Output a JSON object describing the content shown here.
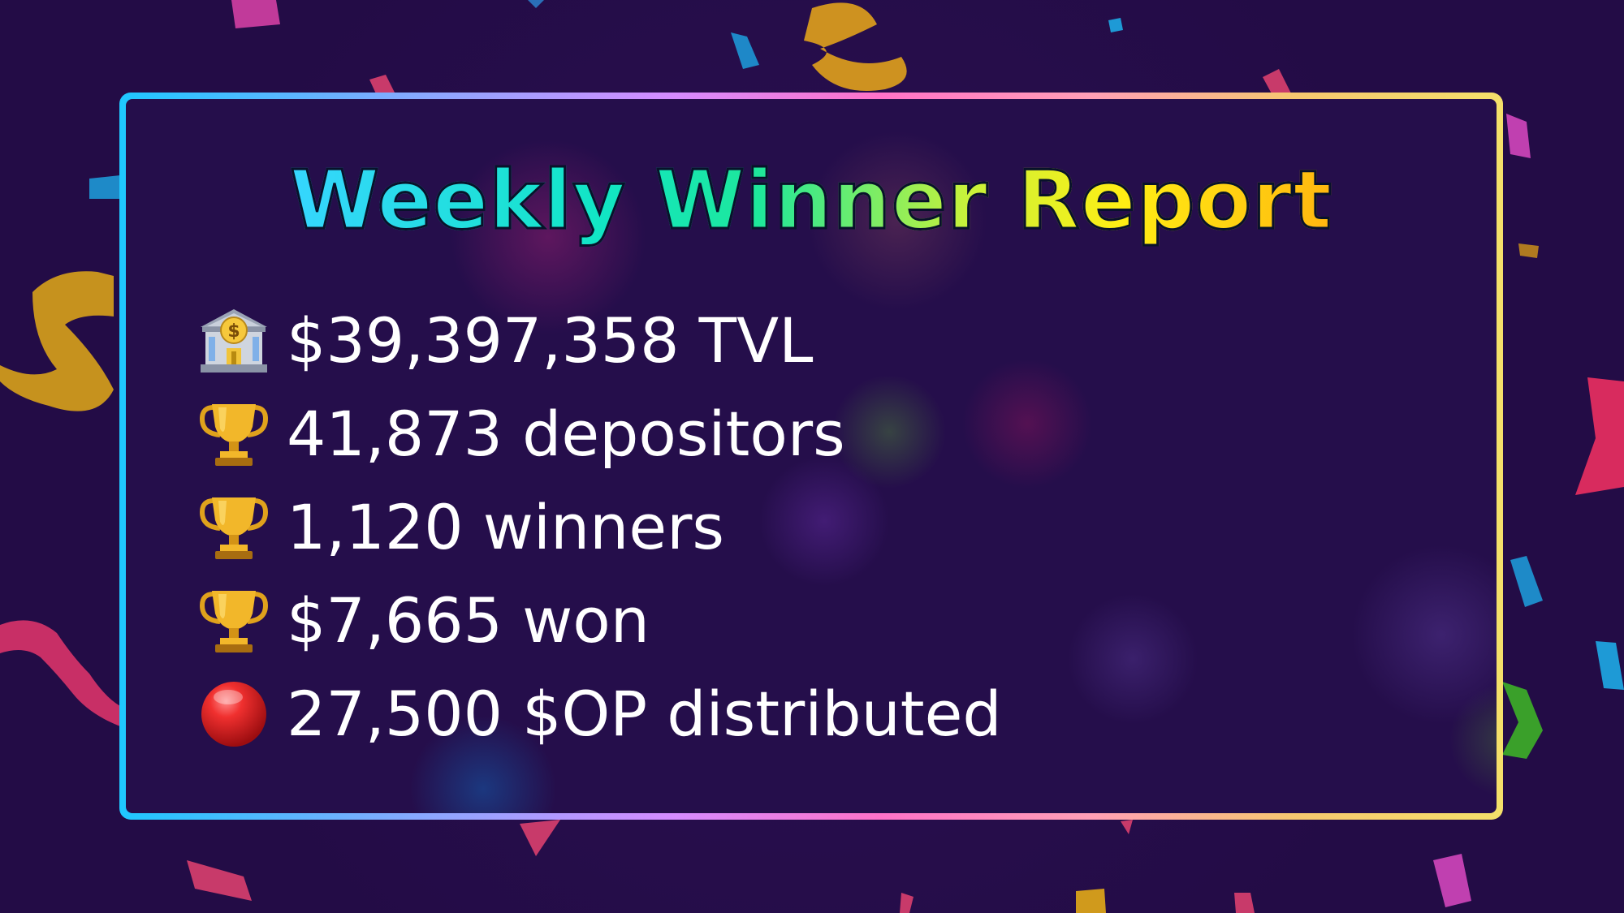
{
  "title": "Weekly Winner Report",
  "stats": [
    {
      "icon": "bank-icon",
      "text": "$39,397,358 TVL"
    },
    {
      "icon": "trophy-icon",
      "text": "41,873 depositors"
    },
    {
      "icon": "trophy-icon",
      "text": "1,120 winners"
    },
    {
      "icon": "trophy-icon",
      "text": "$7,665 won"
    },
    {
      "icon": "red-circle-icon",
      "text": "27,500 $OP distributed"
    }
  ],
  "colors": {
    "background": "#230c46",
    "frame_gradient": [
      "#1ec8ff",
      "#ff72c8",
      "#f4e06a"
    ],
    "title_gradient": [
      "#36d6ff",
      "#1ee79a",
      "#ffee14",
      "#ffb70f"
    ],
    "text": "#ffffff"
  }
}
